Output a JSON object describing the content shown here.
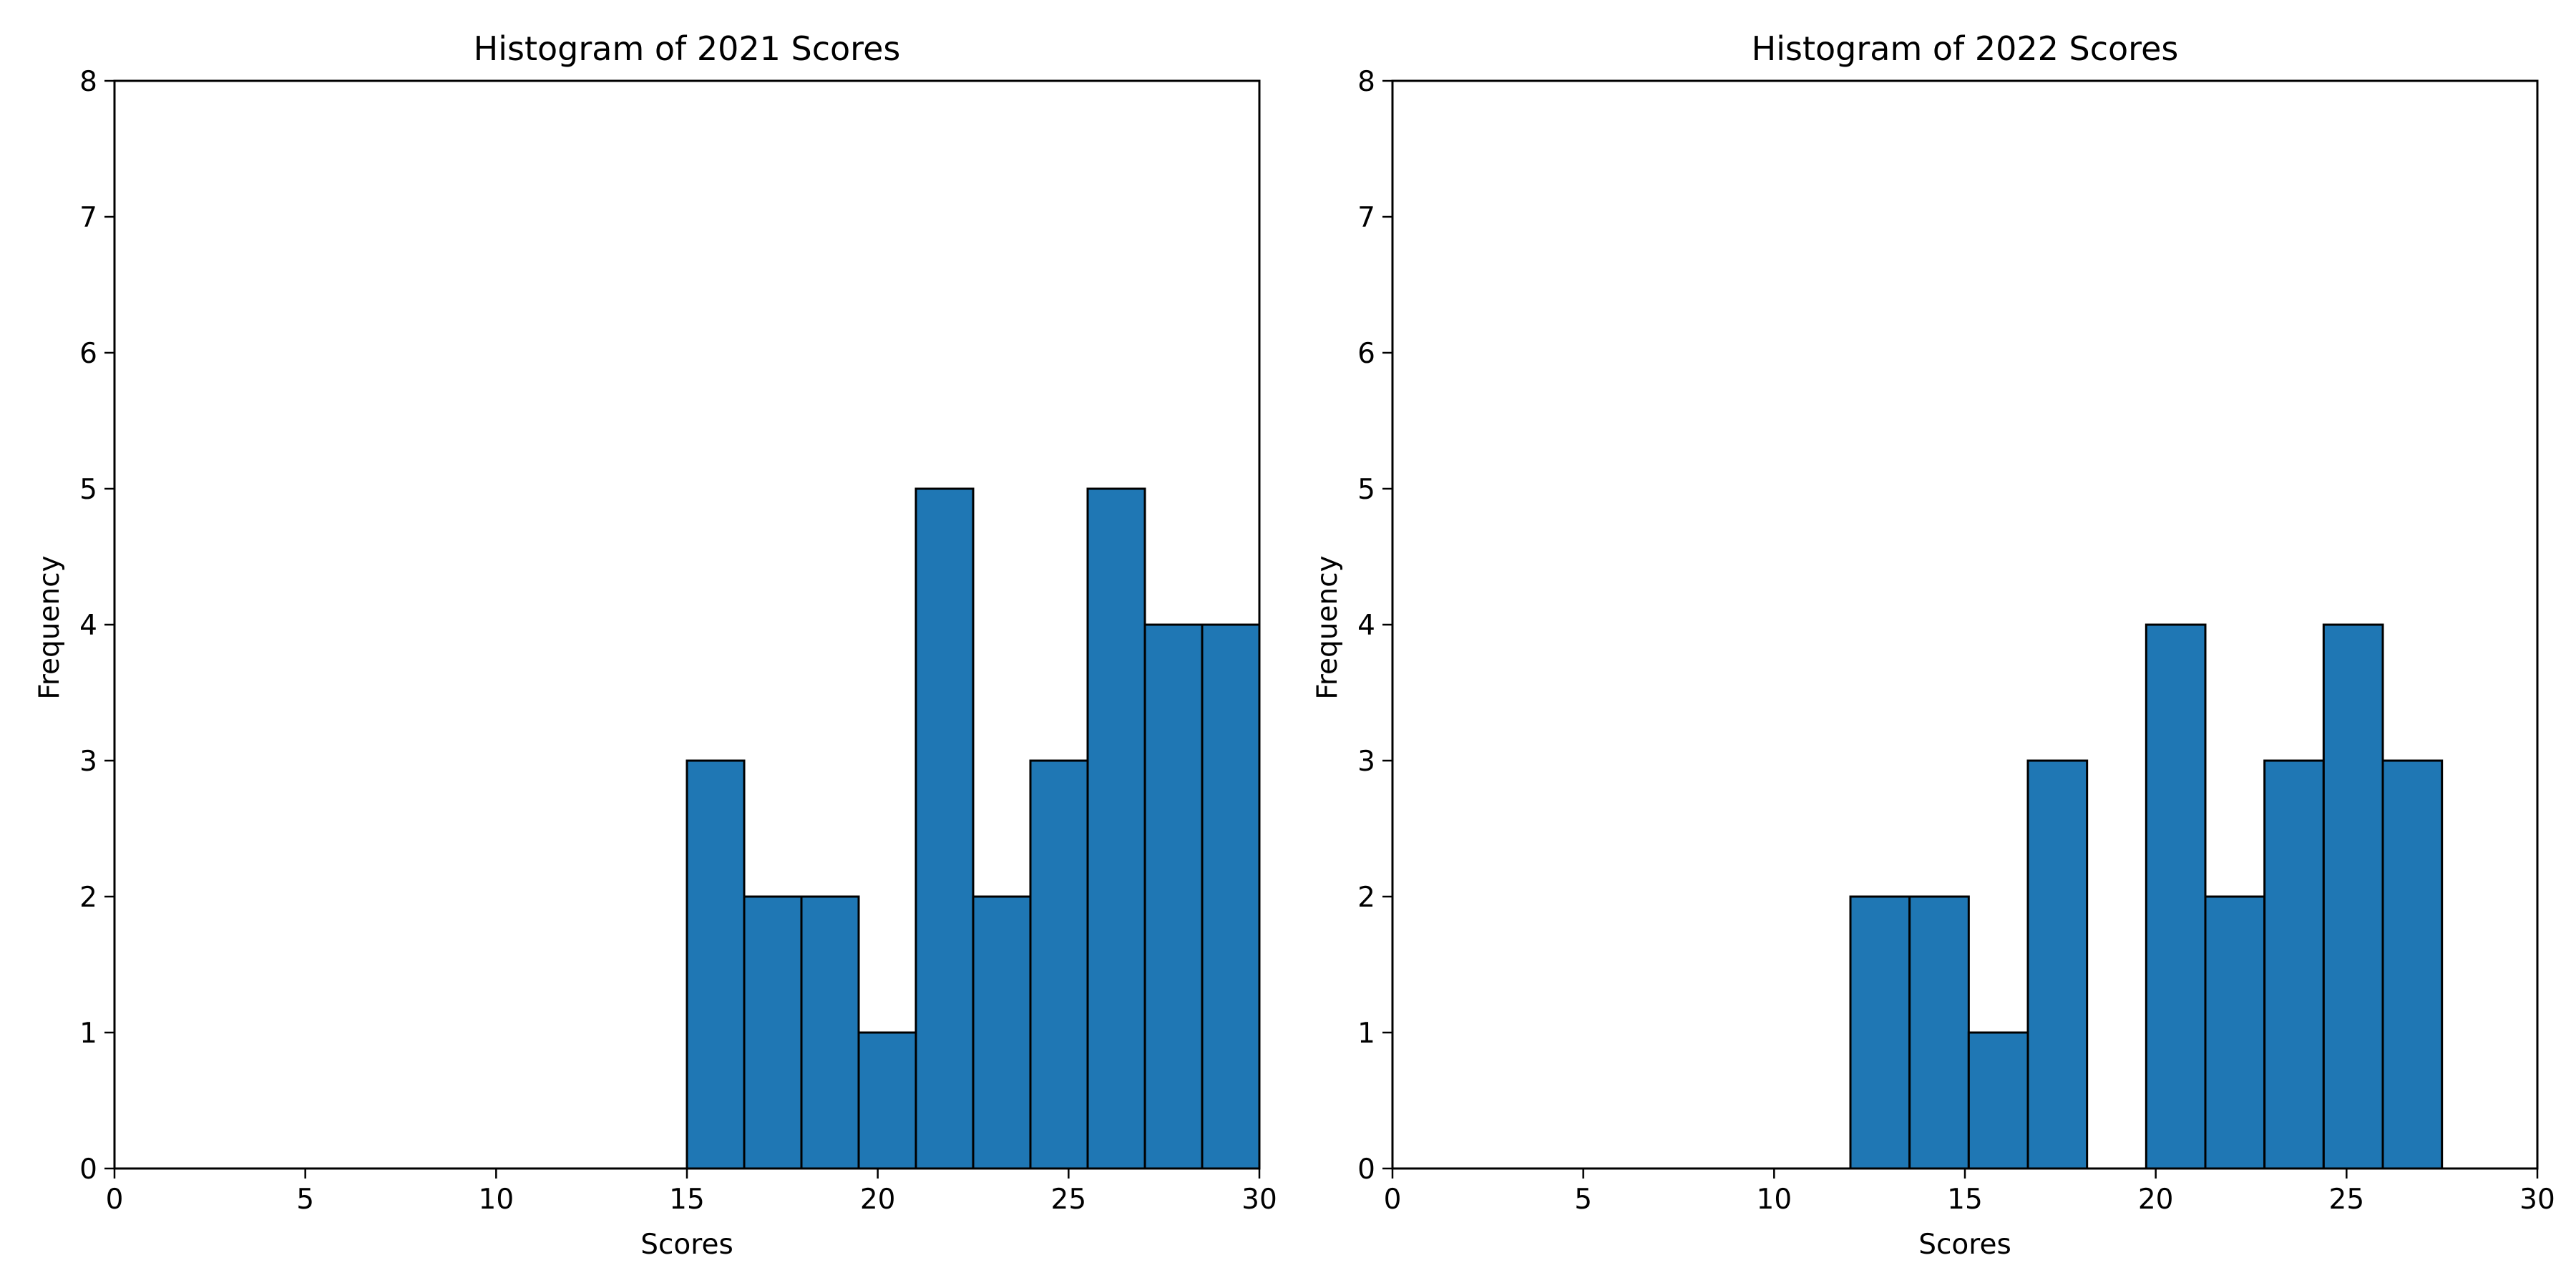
{
  "chart_data": [
    {
      "type": "bar",
      "title": "Histogram of 2021 Scores",
      "xlabel": "Scores",
      "ylabel": "Frequency",
      "xlim": [
        0,
        30
      ],
      "ylim": [
        0,
        8
      ],
      "xticks": [
        0,
        5,
        10,
        15,
        20,
        25,
        30
      ],
      "yticks": [
        0,
        1,
        2,
        3,
        4,
        5,
        6,
        7,
        8
      ],
      "grid": false,
      "color": "#1f77b4",
      "edgecolor": "#000000",
      "bins": [
        {
          "x0": 15.0,
          "x1": 16.5,
          "count": 3
        },
        {
          "x0": 16.5,
          "x1": 18.0,
          "count": 2
        },
        {
          "x0": 18.0,
          "x1": 19.5,
          "count": 2
        },
        {
          "x0": 19.5,
          "x1": 21.0,
          "count": 1
        },
        {
          "x0": 21.0,
          "x1": 22.5,
          "count": 5
        },
        {
          "x0": 22.5,
          "x1": 24.0,
          "count": 2
        },
        {
          "x0": 24.0,
          "x1": 25.5,
          "count": 3
        },
        {
          "x0": 25.5,
          "x1": 27.0,
          "count": 5
        },
        {
          "x0": 27.0,
          "x1": 28.5,
          "count": 4
        },
        {
          "x0": 28.5,
          "x1": 30.0,
          "count": 4
        }
      ]
    },
    {
      "type": "bar",
      "title": "Histogram of 2022 Scores",
      "xlabel": "Scores",
      "ylabel": "Frequency",
      "xlim": [
        0,
        30
      ],
      "ylim": [
        0,
        8
      ],
      "xticks": [
        0,
        5,
        10,
        15,
        20,
        25,
        30
      ],
      "yticks": [
        0,
        1,
        2,
        3,
        4,
        5,
        6,
        7,
        8
      ],
      "grid": false,
      "color": "#1f77b4",
      "edgecolor": "#000000",
      "bins": [
        {
          "x0": 12.0,
          "x1": 13.55,
          "count": 2
        },
        {
          "x0": 13.55,
          "x1": 15.1,
          "count": 2
        },
        {
          "x0": 15.1,
          "x1": 16.65,
          "count": 1
        },
        {
          "x0": 16.65,
          "x1": 18.2,
          "count": 3
        },
        {
          "x0": 18.2,
          "x1": 19.75,
          "count": 0
        },
        {
          "x0": 19.75,
          "x1": 21.3,
          "count": 4
        },
        {
          "x0": 21.3,
          "x1": 22.85,
          "count": 2
        },
        {
          "x0": 22.85,
          "x1": 24.4,
          "count": 3
        },
        {
          "x0": 24.4,
          "x1": 25.95,
          "count": 4
        },
        {
          "x0": 25.95,
          "x1": 27.5,
          "count": 3
        }
      ]
    }
  ]
}
